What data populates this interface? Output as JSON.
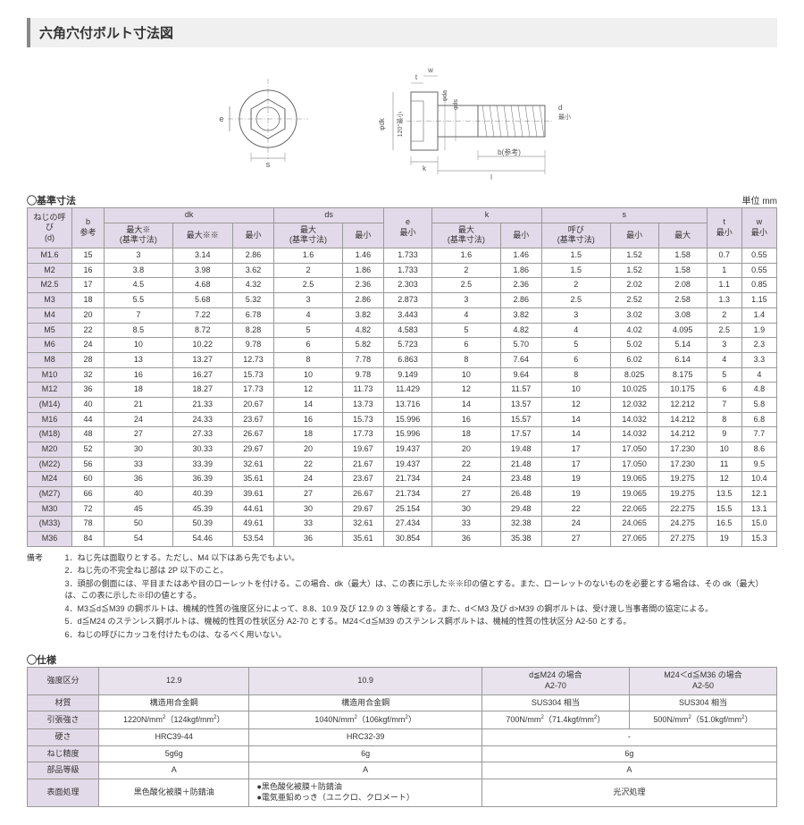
{
  "title": "六角穴付ボルト寸法図",
  "dim_section_label": "◯基準寸法",
  "unit_label": "単位 mm",
  "diagram_labels": {
    "top_left_e": "e",
    "top_left_s": "s",
    "head_120": "120°最小",
    "phi_dk": "φdk",
    "t": "t",
    "w": "w",
    "phi_da": "φda",
    "phi_ds": "φds",
    "d": "d",
    "d_min": "最小",
    "b_ref": "b(参考)",
    "k": "k",
    "l": "l"
  },
  "dim_headers": {
    "r1_d": "ねじの呼び\n(d)",
    "r1_b": "b\n参考",
    "r1_dk": "dk",
    "r1_ds": "ds",
    "r1_e": "e\n最小",
    "r1_k": "k",
    "r1_s": "s",
    "r1_t": "t\n最小",
    "r1_w": "w\n最小",
    "r2": [
      "最大※\n(基準寸法)",
      "最大※※",
      "最小",
      "最大\n(基準寸法)",
      "最小",
      "最大\n(基準寸法)",
      "最小",
      "呼び\n(基準寸法)",
      "最小",
      "最大"
    ]
  },
  "dim_rows": [
    [
      "M1.6",
      "15",
      "3",
      "3.14",
      "2.86",
      "1.6",
      "1.46",
      "1.733",
      "1.6",
      "1.46",
      "1.5",
      "1.52",
      "1.58",
      "0.7",
      "0.55"
    ],
    [
      "M2",
      "16",
      "3.8",
      "3.98",
      "3.62",
      "2",
      "1.86",
      "1.733",
      "2",
      "1.86",
      "1.5",
      "1.52",
      "1.58",
      "1",
      "0.55"
    ],
    [
      "M2.5",
      "17",
      "4.5",
      "4.68",
      "4.32",
      "2.5",
      "2.36",
      "2.303",
      "2.5",
      "2.36",
      "2",
      "2.02",
      "2.08",
      "1.1",
      "0.85"
    ],
    [
      "M3",
      "18",
      "5.5",
      "5.68",
      "5.32",
      "3",
      "2.86",
      "2.873",
      "3",
      "2.86",
      "2.5",
      "2.52",
      "2.58",
      "1.3",
      "1.15"
    ],
    [
      "M4",
      "20",
      "7",
      "7.22",
      "6.78",
      "4",
      "3.82",
      "3.443",
      "4",
      "3.82",
      "3",
      "3.02",
      "3.08",
      "2",
      "1.4"
    ],
    [
      "M5",
      "22",
      "8.5",
      "8.72",
      "8.28",
      "5",
      "4.82",
      "4.583",
      "5",
      "4.82",
      "4",
      "4.02",
      "4.095",
      "2.5",
      "1.9"
    ],
    [
      "M6",
      "24",
      "10",
      "10.22",
      "9.78",
      "6",
      "5.82",
      "5.723",
      "6",
      "5.70",
      "5",
      "5.02",
      "5.14",
      "3",
      "2.3"
    ],
    [
      "M8",
      "28",
      "13",
      "13.27",
      "12.73",
      "8",
      "7.78",
      "6.863",
      "8",
      "7.64",
      "6",
      "6.02",
      "6.14",
      "4",
      "3.3"
    ],
    [
      "M10",
      "32",
      "16",
      "16.27",
      "15.73",
      "10",
      "9.78",
      "9.149",
      "10",
      "9.64",
      "8",
      "8.025",
      "8.175",
      "5",
      "4"
    ],
    [
      "M12",
      "36",
      "18",
      "18.27",
      "17.73",
      "12",
      "11.73",
      "11.429",
      "12",
      "11.57",
      "10",
      "10.025",
      "10.175",
      "6",
      "4.8"
    ],
    [
      "(M14)",
      "40",
      "21",
      "21.33",
      "20.67",
      "14",
      "13.73",
      "13.716",
      "14",
      "13.57",
      "12",
      "12.032",
      "12.212",
      "7",
      "5.8"
    ],
    [
      "M16",
      "44",
      "24",
      "24.33",
      "23.67",
      "16",
      "15.73",
      "15.996",
      "16",
      "15.57",
      "14",
      "14.032",
      "14.212",
      "8",
      "6.8"
    ],
    [
      "(M18)",
      "48",
      "27",
      "27.33",
      "26.67",
      "18",
      "17.73",
      "15.996",
      "18",
      "17.57",
      "14",
      "14.032",
      "14.212",
      "9",
      "7.7"
    ],
    [
      "M20",
      "52",
      "30",
      "30.33",
      "29.67",
      "20",
      "19.67",
      "19.437",
      "20",
      "19.48",
      "17",
      "17.050",
      "17.230",
      "10",
      "8.6"
    ],
    [
      "(M22)",
      "56",
      "33",
      "33.39",
      "32.61",
      "22",
      "21.67",
      "19.437",
      "22",
      "21.48",
      "17",
      "17.050",
      "17.230",
      "11",
      "9.5"
    ],
    [
      "M24",
      "60",
      "36",
      "36.39",
      "35.61",
      "24",
      "23.67",
      "21.734",
      "24",
      "23.48",
      "19",
      "19.065",
      "19.275",
      "12",
      "10.4"
    ],
    [
      "(M27)",
      "66",
      "40",
      "40.39",
      "39.61",
      "27",
      "26.67",
      "21.734",
      "27",
      "26.48",
      "19",
      "19.065",
      "19.275",
      "13.5",
      "12.1"
    ],
    [
      "M30",
      "72",
      "45",
      "45.39",
      "44.61",
      "30",
      "29.67",
      "25.154",
      "30",
      "29.48",
      "22",
      "22.065",
      "22.275",
      "15.5",
      "13.1"
    ],
    [
      "(M33)",
      "78",
      "50",
      "50.39",
      "49.61",
      "33",
      "32.61",
      "27.434",
      "33",
      "32.38",
      "24",
      "24.065",
      "24.275",
      "16.5",
      "15.0"
    ],
    [
      "M36",
      "84",
      "54",
      "54.46",
      "53.54",
      "36",
      "35.61",
      "30.854",
      "36",
      "35.38",
      "27",
      "27.065",
      "27.275",
      "19",
      "15.3"
    ]
  ],
  "notes_label": "備考",
  "notes": [
    "1．ねじ先は面取りとする。ただし、M4 以下はあら先でもよい。",
    "2．ねじ先の不完全ねじ部は 2P 以下のこと。",
    "3．頭部の側面には、平目またはあや目のローレットを付ける。この場合、dk（最大）は、この表に示した※※印の値とする。また、ローレットのないものを必要とする場合は、その dk（最大）は、この表に示した※印の値とする。",
    "4．M3≦d≦M39 の鋼ボルトは、機械的性質の強度区分によって、8.8、10.9 及び 12.9 の 3 等級とする。また、d＜M3 及び d>M39 の鋼ボルトは、受け渡し当事者間の協定による。",
    "5．d≦M24 のステンレス鋼ボルトは、機械的性質の性状区分 A2-70 とする。M24＜d≦M39 のステンレス鋼ボルトは、機械的性質の性状区分 A2-50 とする。",
    "6．ねじの呼びにカッコを付けたものは、なるべく用いない。"
  ],
  "spec_section_label": "◯仕様",
  "spec_headers": [
    "強度区分",
    "12.9",
    "10.9",
    "d≦M24 の場合\nA2-70",
    "M24＜d≦M36 の場合\nA2-50"
  ],
  "spec_rows": [
    [
      "材質",
      "構造用合金鋼",
      "構造用合金鋼",
      "SUS304 相当",
      "SUS304 相当"
    ],
    [
      "引張強さ",
      "1220N/mm²（124kgf/mm²）",
      "1040N/mm²（106kgf/mm²）",
      "700N/mm²（71.4kgf/mm²）",
      "500N/mm²（51.0kgf/mm²）"
    ],
    [
      "硬さ",
      "HRC39-44",
      "HRC32-39",
      "-",
      "-",
      true
    ],
    [
      "ねじ精度",
      "5g6g",
      "6g",
      "6g",
      "",
      true
    ],
    [
      "部品等級",
      "A",
      "A",
      "A",
      "",
      true
    ],
    [
      "表面処理",
      "黒色酸化被膜＋防錆油",
      "●黒色酸化被膜＋防錆油\n●電気亜鉛めっき（ユニクロ、クロメート）",
      "光沢処理",
      "",
      true
    ]
  ],
  "colors": {
    "header_bg": "#e2dae8",
    "border": "#999999",
    "titlebar_bg": "#f0f0f0"
  }
}
